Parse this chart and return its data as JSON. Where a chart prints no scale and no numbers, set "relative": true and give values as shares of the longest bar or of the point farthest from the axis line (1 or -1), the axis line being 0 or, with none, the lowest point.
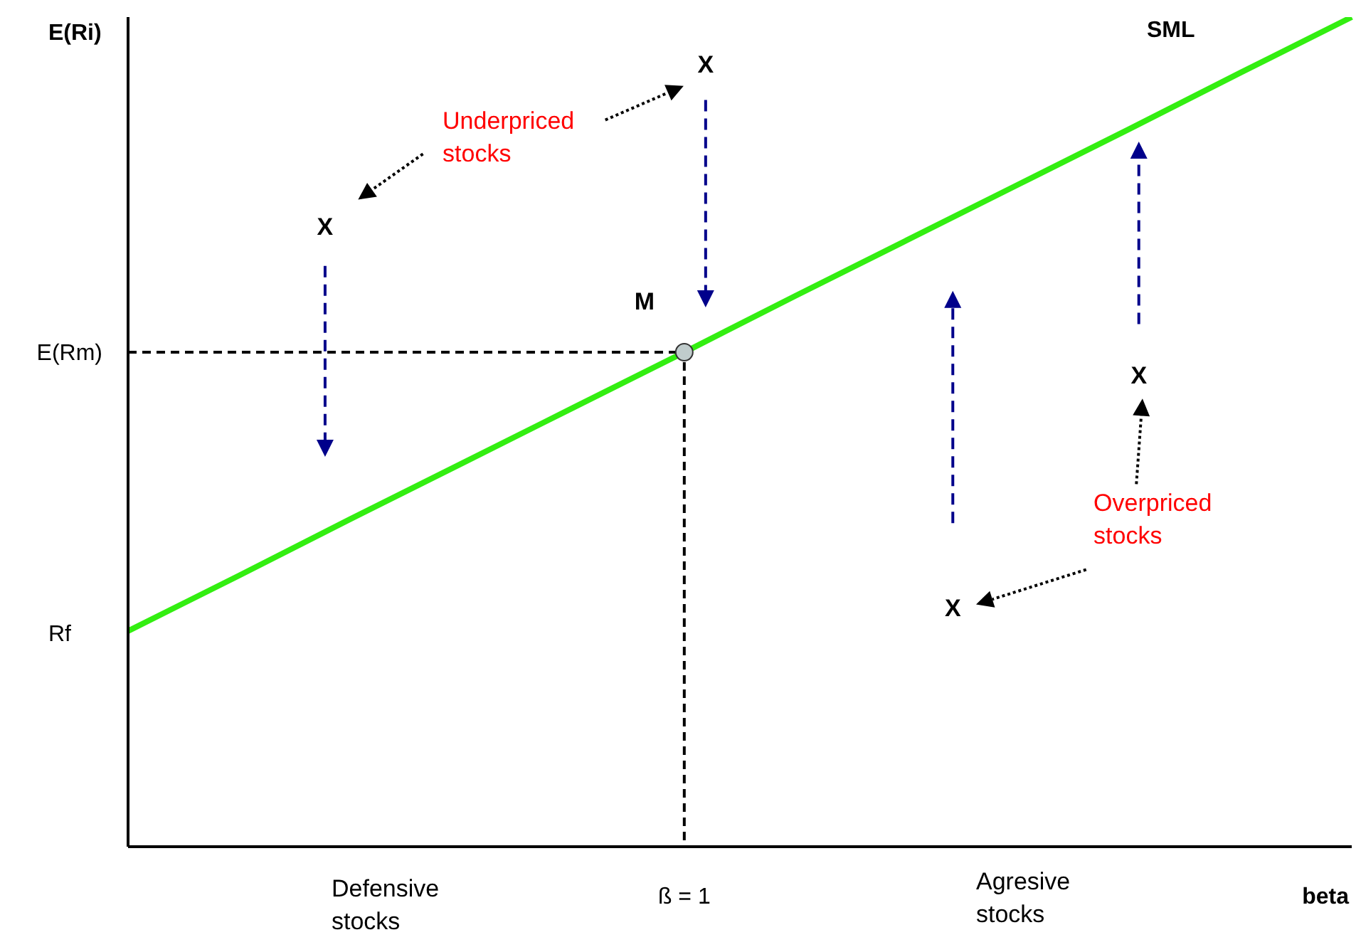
{
  "chart_data": {
    "type": "line",
    "relative": true,
    "xlabel": "beta",
    "ylabel": "E(Ri)",
    "categories": [
      null,
      null,
      null,
      null,
      null,
      null,
      null,
      null,
      null,
      null,
      null,
      null
    ],
    "series": [
      {
        "color": "#33ee11",
        "values": [
          0.26,
          0.327,
          0.395,
          0.462,
          0.529,
          0.596,
          0.664,
          0.731,
          0.798,
          0.865,
          0.933,
          1
        ]
      }
    ],
    "ref_lines": [
      {
        "axis": "y",
        "value": 0.596,
        "label": "E(Rm)",
        "color": "#000000",
        "line_style": "dashed"
      }
    ],
    "annotations": [
      "X",
      "X",
      "X",
      "X",
      "M",
      "Rf",
      "ß = 1",
      "Underpriced stocks",
      "Overpriced stocks",
      "Defensive stocks",
      "Agresive stocks",
      "SML"
    ]
  }
}
